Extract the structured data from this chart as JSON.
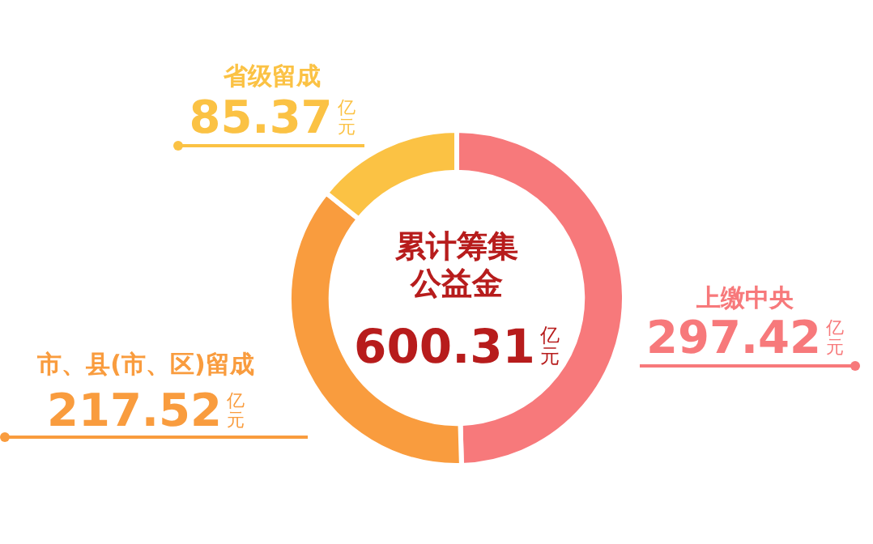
{
  "chart_data": {
    "type": "donut",
    "title": "累计筹集公益金",
    "annotations": [
      "600.31亿元"
    ],
    "categories": [
      "上缴中央",
      "市、县(市、区)留成",
      "省级留成"
    ],
    "values": [
      297.42,
      217.52,
      85.37
    ],
    "colors": [
      "#f7797b",
      "#f99c3e",
      "#fbc244"
    ],
    "value_labels": [
      "297.42亿元",
      "217.52亿元",
      "85.37亿元"
    ],
    "legend": false
  }
}
